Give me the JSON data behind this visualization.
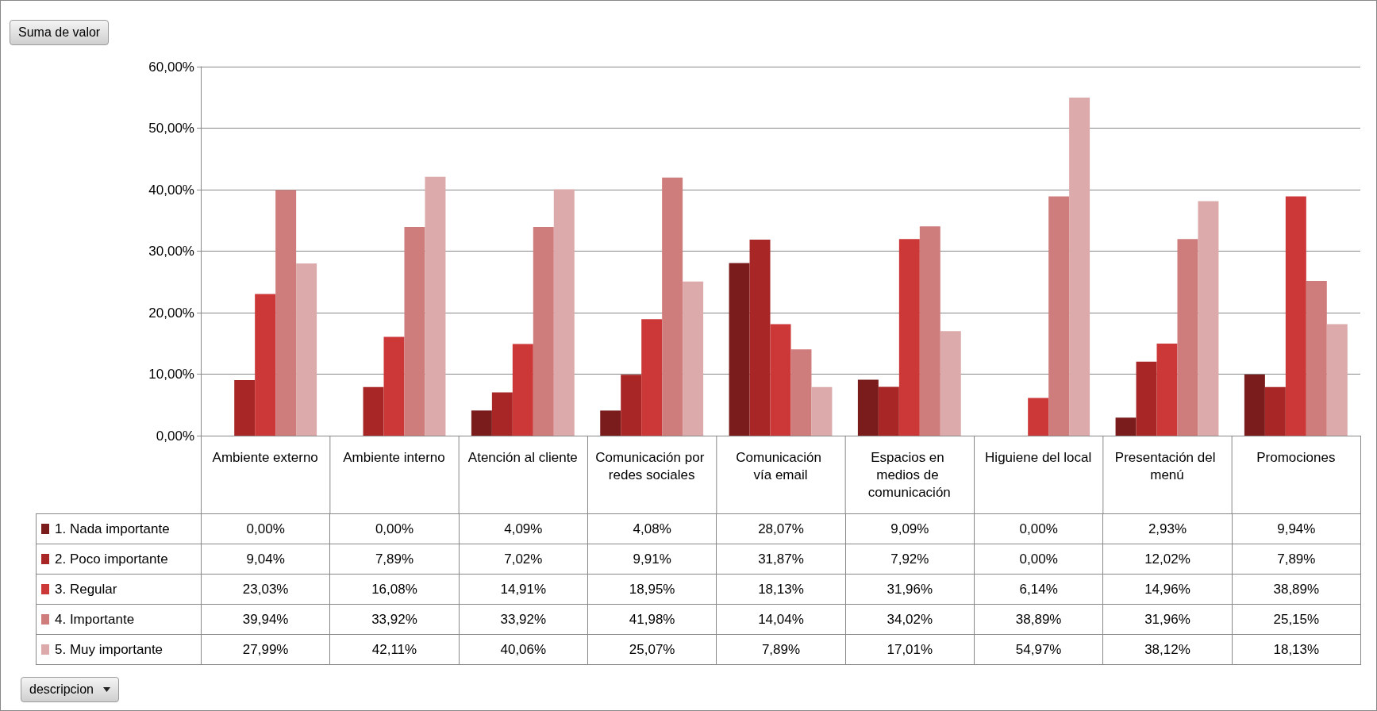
{
  "chart_data": {
    "type": "bar",
    "categories": [
      "Ambiente externo",
      "Ambiente interno",
      "Atención al cliente",
      "Comunicación por redes sociales",
      "Comunicación vía email",
      "Espacios en medios de comunicación",
      "Higuiene del local",
      "Presentación del menú",
      "Promociones"
    ],
    "series": [
      {
        "name": "1. Nada importante",
        "color": "#7b1c1c",
        "values": [
          0,
          0,
          4.09,
          4.08,
          28.07,
          9.09,
          0,
          2.93,
          9.94
        ],
        "value_labels": [
          "0,00%",
          "0,00%",
          "4,09%",
          "4,08%",
          "28,07%",
          "9,09%",
          "0,00%",
          "2,93%",
          "9,94%"
        ]
      },
      {
        "name": "2. Poco importante",
        "color": "#a82626",
        "values": [
          9.04,
          7.89,
          7.02,
          9.91,
          31.87,
          7.92,
          0,
          12.02,
          7.89
        ],
        "value_labels": [
          "9,04%",
          "7,89%",
          "7,02%",
          "9,91%",
          "31,87%",
          "7,92%",
          "0,00%",
          "12,02%",
          "7,89%"
        ]
      },
      {
        "name": "3. Regular",
        "color": "#cc3838",
        "values": [
          23.03,
          16.08,
          14.91,
          18.95,
          18.13,
          31.96,
          6.14,
          14.96,
          38.89
        ],
        "value_labels": [
          "23,03%",
          "16,08%",
          "14,91%",
          "18,95%",
          "18,13%",
          "31,96%",
          "6,14%",
          "14,96%",
          "38,89%"
        ]
      },
      {
        "name": "4. Importante",
        "color": "#cf7c7c",
        "values": [
          39.94,
          33.92,
          33.92,
          41.98,
          14.04,
          34.02,
          38.89,
          31.96,
          25.15
        ],
        "value_labels": [
          "39,94%",
          "33,92%",
          "33,92%",
          "41,98%",
          "14,04%",
          "34,02%",
          "38,89%",
          "31,96%",
          "25,15%"
        ]
      },
      {
        "name": "5. Muy importante",
        "color": "#dcaaaa",
        "values": [
          27.99,
          42.11,
          40.06,
          25.07,
          7.89,
          17.01,
          54.97,
          38.12,
          18.13
        ],
        "value_labels": [
          "27,99%",
          "42,11%",
          "40,06%",
          "25,07%",
          "7,89%",
          "17,01%",
          "54,97%",
          "38,12%",
          "18,13%"
        ]
      }
    ],
    "ylim": [
      0,
      60
    ],
    "yticks": [
      {
        "value": 0,
        "label": "0,00%"
      },
      {
        "value": 10,
        "label": "10,00%"
      },
      {
        "value": 20,
        "label": "20,00%"
      },
      {
        "value": 30,
        "label": "30,00%"
      },
      {
        "value": 40,
        "label": "40,00%"
      },
      {
        "value": 50,
        "label": "50,00%"
      },
      {
        "value": 60,
        "label": "60,00%"
      }
    ],
    "grid": "y",
    "legend": "bottom",
    "annotations": [
      "Suma de valor",
      "descripcion"
    ]
  }
}
